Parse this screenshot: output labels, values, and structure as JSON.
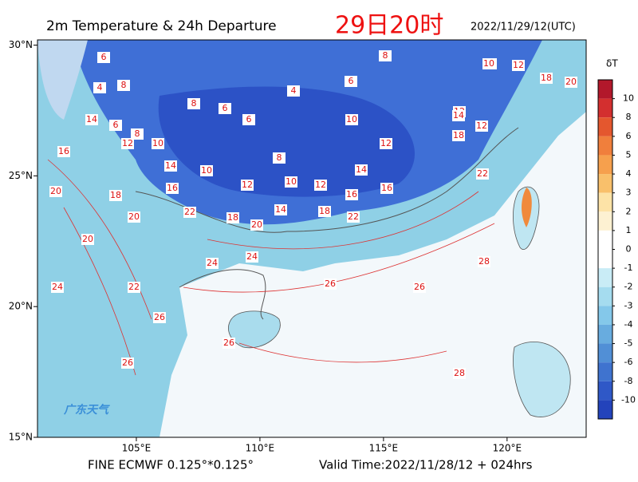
{
  "title": "2m Temperature & 24h Departure",
  "time_label": "29日20时",
  "date": "2022/11/29/12(UTC)",
  "lon_axis": {
    "lim": [
      101,
      123.2
    ],
    "ticks": [
      {
        "value": 105,
        "label": "105°E"
      },
      {
        "value": 110,
        "label": "110°E"
      },
      {
        "value": 115,
        "label": "115°E"
      },
      {
        "value": 120,
        "label": "120°E"
      }
    ]
  },
  "lat_axis": {
    "lim": [
      15,
      30.2
    ],
    "ticks": [
      {
        "value": 15,
        "label": "15°N"
      },
      {
        "value": 20,
        "label": "20°N"
      },
      {
        "value": 25,
        "label": "25°N"
      },
      {
        "value": 30,
        "label": "30°N"
      }
    ]
  },
  "colorbar": {
    "title": "δT",
    "ticks": [
      10,
      8,
      6,
      5,
      4,
      3,
      2,
      1,
      0,
      -1,
      -2,
      -3,
      -4,
      -5,
      -6,
      -8,
      -10
    ],
    "colors": [
      "#b2182b",
      "#d32f2f",
      "#e4572e",
      "#f07f3c",
      "#f6a04d",
      "#f9c06b",
      "#fde3a7",
      "#fdf1d2",
      "#ffffff",
      "#ffffff",
      "#c9ecf6",
      "#a5dcef",
      "#84c8ea",
      "#68acdf",
      "#518fd6",
      "#3f73cf",
      "#2f58c7",
      "#2343bb"
    ]
  },
  "footer_left": "FINE ECMWF 0.125°*0.125°",
  "footer_right": "Valid Time:2022/11/28/12 + 024hrs",
  "watermark": "广东天气",
  "contour_labels": [
    6,
    8,
    4,
    8,
    6,
    6,
    4,
    6,
    8,
    8,
    10,
    12,
    18,
    20,
    12,
    18,
    12,
    14,
    12,
    10,
    8,
    10,
    14,
    16,
    12,
    10,
    12,
    14,
    16,
    16,
    22,
    18,
    20,
    14,
    18,
    22,
    22,
    24,
    24,
    26,
    26,
    28,
    26,
    26,
    28,
    20,
    12,
    14,
    6,
    8,
    10,
    16,
    20,
    18,
    20,
    22,
    24,
    26
  ]
}
